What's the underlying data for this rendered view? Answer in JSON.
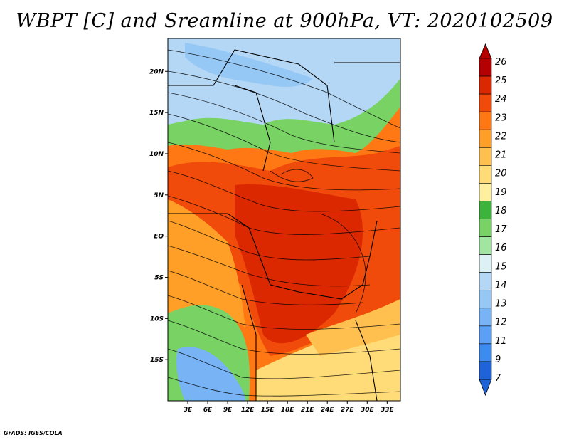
{
  "title": "WBPT [C] and Sreamline at 900hPa, VT: 2020102509",
  "credit": "GrADS: IGES/COLA",
  "map": {
    "lon_ticks": [
      "3E",
      "6E",
      "9E",
      "12E",
      "15E",
      "18E",
      "21E",
      "24E",
      "27E",
      "30E",
      "33E"
    ],
    "lat_ticks": [
      "20N",
      "15N",
      "10N",
      "5N",
      "EQ",
      "5S",
      "10S",
      "15S"
    ],
    "lon_range": [
      0,
      35
    ],
    "lat_range": [
      -20,
      24
    ]
  },
  "colorbar": {
    "labels": [
      "7",
      "9",
      "11",
      "12",
      "13",
      "14",
      "15",
      "16",
      "17",
      "18",
      "19",
      "20",
      "21",
      "22",
      "23",
      "24",
      "25",
      "26"
    ],
    "colors": [
      "#1e64d8",
      "#3c8cf0",
      "#5aa0f5",
      "#78b4f5",
      "#96c8f5",
      "#b4d7f5",
      "#dcf0f5",
      "#a0e6a0",
      "#78d264",
      "#3cb43c",
      "#fff0a0",
      "#ffdc78",
      "#ffc050",
      "#ff9f28",
      "#ff7814",
      "#f04b0a",
      "#dc2800",
      "#b40000"
    ],
    "under_color": "#1e64d8",
    "over_color": "#b40000"
  }
}
